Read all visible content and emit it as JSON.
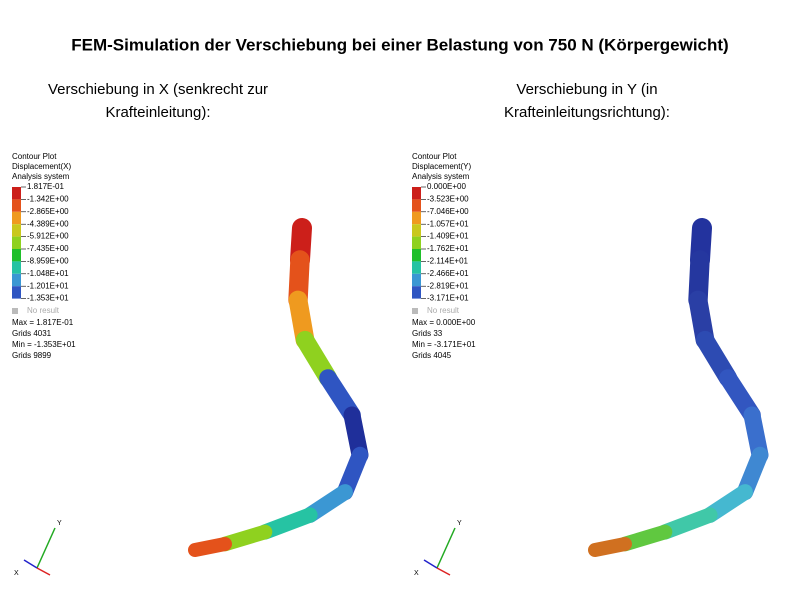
{
  "title": "FEM-Simulation der Verschiebung bei einer Belastung von 750 N (Körpergewicht)",
  "panels": [
    {
      "heading": [
        "Verschiebung  in X (senkrecht zur",
        "Krafteinleitung):"
      ],
      "legend": {
        "header": [
          "Contour Plot",
          "Displacement(X)",
          "Analysis system"
        ],
        "values": [
          "1.817E-01",
          "-1.342E+00",
          "-2.865E+00",
          "-4.389E+00",
          "-5.912E+00",
          "-7.435E+00",
          "-8.959E+00",
          "-1.048E+01",
          "-1.201E+01",
          "-1.353E+01"
        ],
        "no_result": "No result",
        "stats": [
          "Max = 1.817E-01",
          "Grids 4031",
          "Min = -1.353E+01",
          "Grids 9899"
        ]
      },
      "axes": [
        "Y",
        "X"
      ]
    },
    {
      "heading": [
        "Verschiebung  in Y (in",
        "Krafteinleitungsrichtung):"
      ],
      "legend": {
        "header": [
          "Contour Plot",
          "Displacement(Y)",
          "Analysis system"
        ],
        "values": [
          "0.000E+00",
          "-3.523E+00",
          "-7.046E+00",
          "-1.057E+01",
          "-1.409E+01",
          "-1.762E+01",
          "-2.114E+01",
          "-2.466E+01",
          "-2.819E+01",
          "-3.171E+01"
        ],
        "no_result": "No result",
        "stats": [
          "Max = 0.000E+00",
          "Grids 33",
          "Min = -3.171E+01",
          "Grids 4045"
        ]
      },
      "axes": [
        "Y",
        "X"
      ]
    }
  ]
}
